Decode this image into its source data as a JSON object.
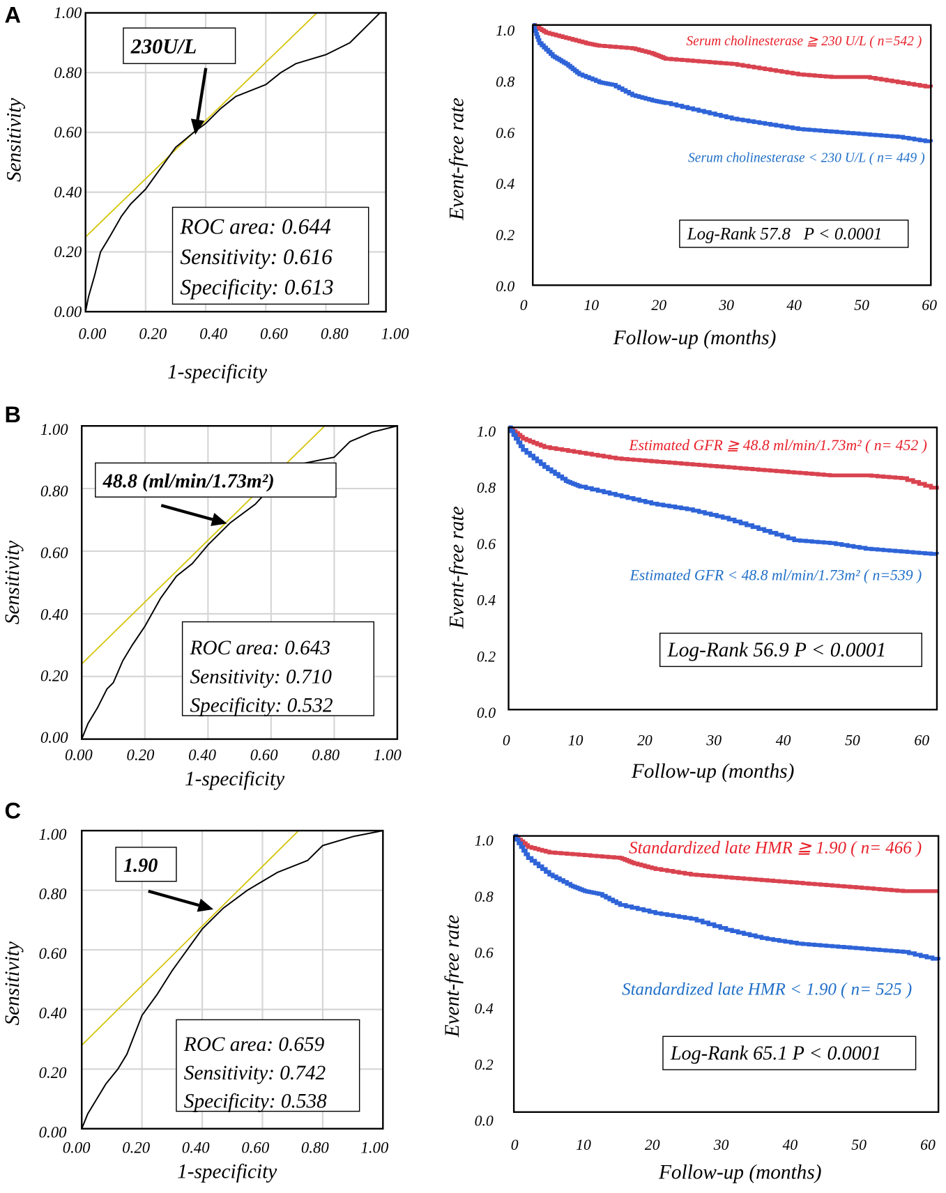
{
  "colors": {
    "high_group": "#d9434f",
    "low_group": "#2f64d8",
    "reference_line": "#d4c300",
    "grid": "#d6d6d6",
    "axis": "#000000"
  },
  "chart_data": [
    {
      "panel": "A",
      "type": "line",
      "kind": "roc",
      "title": "",
      "xlabel": "1-specificity",
      "ylabel": "Sensitivity",
      "xlim": [
        0,
        1
      ],
      "ylim": [
        0,
        1
      ],
      "grid": true,
      "xticks": [
        "0.00",
        "0.20",
        "0.40",
        "0.60",
        "0.80",
        "1.00"
      ],
      "yticks": [
        "0.00",
        "0.20",
        "0.40",
        "0.60",
        "0.80",
        "1.00"
      ],
      "series": [
        {
          "x": [
            0,
            0.01,
            0.03,
            0.05,
            0.08,
            0.12,
            0.15,
            0.2,
            0.25,
            0.3,
            0.36,
            0.4,
            0.45,
            0.5,
            0.6,
            0.65,
            0.7,
            0.8,
            0.88,
            0.93,
            0.98
          ],
          "y": [
            0,
            0.05,
            0.12,
            0.2,
            0.25,
            0.32,
            0.36,
            0.41,
            0.48,
            0.55,
            0.6,
            0.63,
            0.68,
            0.72,
            0.76,
            0.8,
            0.83,
            0.86,
            0.9,
            0.95,
            1.0
          ]
        }
      ],
      "reference_line": {
        "x": [
          0,
          0.77
        ],
        "y": [
          0.25,
          1
        ]
      },
      "cutoff_label": "230U/L",
      "cutoff_point": [
        0.36,
        0.6
      ],
      "stats": [
        "ROC area: 0.644",
        "Sensitivity: 0.616",
        "Specificity: 0.613"
      ]
    },
    {
      "panel": "A",
      "type": "line",
      "kind": "km",
      "title": "",
      "xlabel": "Follow-up  (months)",
      "ylabel": "Event-free rate",
      "xlim": [
        0,
        60
      ],
      "ylim": [
        0,
        1
      ],
      "grid": false,
      "xticks": [
        "0",
        "10",
        "20",
        "30",
        "40",
        "50",
        "60"
      ],
      "yticks": [
        "0.0",
        "0.2",
        "0.4",
        "0.6",
        "0.8",
        "1.0"
      ],
      "series": [
        {
          "name": "Serum cholinesterase ≧ 230 U/L ( n=542 )",
          "color": "#d9434f",
          "x": [
            0,
            2,
            5,
            8,
            10,
            15,
            18,
            20,
            25,
            30,
            35,
            40,
            45,
            50,
            55,
            60
          ],
          "y": [
            1.0,
            0.97,
            0.95,
            0.93,
            0.92,
            0.91,
            0.89,
            0.87,
            0.86,
            0.85,
            0.83,
            0.81,
            0.8,
            0.8,
            0.78,
            0.76
          ]
        },
        {
          "name": "Serum cholinesterase < 230 U/L ( n= 449 )",
          "color": "#2f64d8",
          "x": [
            0,
            1,
            3,
            5,
            7,
            10,
            12,
            15,
            18,
            20,
            25,
            30,
            35,
            40,
            45,
            50,
            55,
            60
          ],
          "y": [
            1.0,
            0.93,
            0.88,
            0.85,
            0.81,
            0.78,
            0.77,
            0.73,
            0.71,
            0.7,
            0.67,
            0.64,
            0.62,
            0.6,
            0.59,
            0.58,
            0.57,
            0.55
          ]
        }
      ],
      "annotation": "Log-Rank 57.8   P < 0.0001"
    },
    {
      "panel": "B",
      "type": "line",
      "kind": "roc",
      "title": "",
      "xlabel": "1-specificity",
      "ylabel": "Sensitivity",
      "xlim": [
        0,
        1
      ],
      "ylim": [
        0,
        1
      ],
      "grid": true,
      "xticks": [
        "0.00",
        "0.20",
        "0.40",
        "0.60",
        "0.80",
        "1.00"
      ],
      "yticks": [
        "0.00",
        "0.20",
        "0.40",
        "0.60",
        "0.80",
        "1.00"
      ],
      "series": [
        {
          "x": [
            0,
            0.02,
            0.05,
            0.08,
            0.1,
            0.13,
            0.16,
            0.2,
            0.25,
            0.3,
            0.35,
            0.4,
            0.47,
            0.55,
            0.65,
            0.7,
            0.8,
            0.85,
            0.92,
            1.0
          ],
          "y": [
            0,
            0.05,
            0.1,
            0.16,
            0.18,
            0.25,
            0.3,
            0.36,
            0.45,
            0.52,
            0.56,
            0.62,
            0.69,
            0.75,
            0.86,
            0.88,
            0.9,
            0.95,
            0.98,
            1.0
          ]
        }
      ],
      "reference_line": {
        "x": [
          0,
          0.77
        ],
        "y": [
          0.24,
          1
        ]
      },
      "cutoff_label": "48.8 (ml/min/1.73m²)",
      "cutoff_point": [
        0.47,
        0.69
      ],
      "stats": [
        "ROC area: 0.643",
        "Sensitivity: 0.710",
        "Specificity: 0.532"
      ]
    },
    {
      "panel": "B",
      "type": "line",
      "kind": "km",
      "title": "",
      "xlabel": "Follow-up (months)",
      "ylabel": "Event-free rate",
      "xlim": [
        0,
        60
      ],
      "ylim": [
        0,
        1
      ],
      "grid": false,
      "xticks": [
        "0",
        "10",
        "20",
        "30",
        "40",
        "50",
        "60"
      ],
      "yticks": [
        "0.0",
        "0.2",
        "0.4",
        "0.6",
        "0.8",
        "1.0"
      ],
      "series": [
        {
          "name": "Estimated GFR ≧ 48.8 ml/min/1.73m² ( n= 452 )",
          "color": "#d9434f",
          "x": [
            0,
            2,
            5,
            10,
            15,
            20,
            25,
            30,
            35,
            40,
            45,
            50,
            55,
            60
          ],
          "y": [
            1.0,
            0.96,
            0.93,
            0.91,
            0.89,
            0.88,
            0.87,
            0.86,
            0.85,
            0.84,
            0.83,
            0.83,
            0.82,
            0.78
          ]
        },
        {
          "name": "Estimated GFR < 48.8 ml/min/1.73m² ( n=539 )",
          "color": "#2f64d8",
          "x": [
            0,
            2,
            5,
            8,
            10,
            15,
            20,
            25,
            30,
            35,
            40,
            45,
            50,
            55,
            60
          ],
          "y": [
            1.0,
            0.92,
            0.86,
            0.81,
            0.79,
            0.76,
            0.73,
            0.71,
            0.68,
            0.64,
            0.6,
            0.59,
            0.57,
            0.56,
            0.55
          ]
        }
      ],
      "annotation": "Log-Rank 56.9 P < 0.0001"
    },
    {
      "panel": "C",
      "type": "line",
      "kind": "roc",
      "title": "",
      "xlabel": "1-specificity",
      "ylabel": "Sensitivity",
      "xlim": [
        0,
        1
      ],
      "ylim": [
        0,
        1
      ],
      "grid": true,
      "xticks": [
        "0.00",
        "0.20",
        "0.40",
        "0.60",
        "0.80",
        "1.00"
      ],
      "yticks": [
        "0.00",
        "0.20",
        "0.40",
        "0.60",
        "0.80",
        "1.00"
      ],
      "series": [
        {
          "x": [
            0,
            0.02,
            0.05,
            0.08,
            0.12,
            0.15,
            0.2,
            0.25,
            0.3,
            0.35,
            0.4,
            0.47,
            0.55,
            0.65,
            0.75,
            0.8,
            0.9,
            1.0
          ],
          "y": [
            0,
            0.05,
            0.1,
            0.15,
            0.2,
            0.25,
            0.38,
            0.45,
            0.53,
            0.6,
            0.67,
            0.74,
            0.8,
            0.86,
            0.9,
            0.95,
            0.98,
            1.0
          ]
        }
      ],
      "reference_line": {
        "x": [
          0,
          0.72
        ],
        "y": [
          0.28,
          1
        ]
      },
      "cutoff_label": "1.90",
      "cutoff_point": [
        0.46,
        0.74
      ],
      "stats": [
        "ROC area: 0.659",
        "Sensitivity: 0.742",
        "Specificity: 0.538"
      ]
    },
    {
      "panel": "C",
      "type": "line",
      "kind": "km",
      "title": "",
      "xlabel": "Follow-up (months)",
      "ylabel": "Event-free rate",
      "xlim": [
        0,
        60
      ],
      "ylim": [
        0,
        1
      ],
      "grid": false,
      "xticks": [
        "0",
        "10",
        "20",
        "30",
        "40",
        "50",
        "60"
      ],
      "yticks": [
        "0.0",
        "0.2",
        "0.4",
        "0.6",
        "0.8",
        "1.0"
      ],
      "series": [
        {
          "name": "Standardized late HMR ≧ 1.90 ( n= 466 )",
          "color": "#d9434f",
          "x": [
            0,
            2,
            5,
            10,
            15,
            17,
            20,
            25,
            30,
            35,
            40,
            45,
            50,
            55,
            60
          ],
          "y": [
            1.0,
            0.96,
            0.94,
            0.93,
            0.92,
            0.9,
            0.88,
            0.86,
            0.85,
            0.84,
            0.83,
            0.82,
            0.81,
            0.8,
            0.8
          ]
        },
        {
          "name": "Standardized late HMR < 1.90 ( n= 525 )",
          "color": "#2f64d8",
          "x": [
            0,
            2,
            5,
            8,
            10,
            12,
            15,
            20,
            25,
            30,
            35,
            40,
            45,
            50,
            55,
            60
          ],
          "y": [
            1.0,
            0.92,
            0.86,
            0.82,
            0.8,
            0.79,
            0.75,
            0.72,
            0.7,
            0.66,
            0.63,
            0.61,
            0.6,
            0.59,
            0.58,
            0.55
          ]
        }
      ],
      "annotation": "Log-Rank 65.1 P < 0.0001"
    }
  ]
}
